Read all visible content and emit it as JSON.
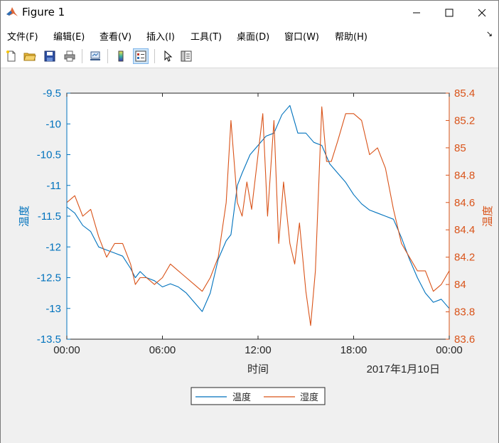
{
  "window": {
    "title": "Figure 1",
    "colors": {
      "titlebar": "#ffffff",
      "figure_bg": "#f0f0f0"
    }
  },
  "menu": {
    "items": [
      "文件(F)",
      "编辑(E)",
      "查看(V)",
      "插入(I)",
      "工具(T)",
      "桌面(D)",
      "窗口(W)",
      "帮助(H)"
    ],
    "overflow_icon": "dock-arrow-icon"
  },
  "toolbar": {
    "buttons": [
      {
        "icon": "new-figure-icon"
      },
      {
        "icon": "open-file-icon"
      },
      {
        "icon": "save-icon"
      },
      {
        "icon": "print-icon"
      },
      {
        "icon": "link-plot-icon"
      },
      {
        "icon": "colorbar-icon"
      },
      {
        "icon": "legend-icon",
        "active": true
      },
      {
        "icon": "pointer-icon"
      },
      {
        "icon": "property-inspector-icon"
      }
    ]
  },
  "chart_data": {
    "type": "line",
    "xlabel": "时间",
    "x_secondary_label": "2017年1月10日",
    "ylabel_left": "温度",
    "ylabel_right": "温度",
    "x_ticks": [
      "00:00",
      "06:00",
      "12:00",
      "18:00",
      "00:00"
    ],
    "xlim_hours": [
      0,
      24
    ],
    "ylim_left": [
      -13.5,
      -9.5
    ],
    "ylim_right": [
      83.6,
      85.4
    ],
    "y_ticks_left": [
      "-9.5",
      "-10",
      "-10.5",
      "-11",
      "-11.5",
      "-12",
      "-12.5",
      "-13",
      "-13.5"
    ],
    "y_ticks_right": [
      "85.4",
      "85.2",
      "85",
      "84.8",
      "84.6",
      "84.4",
      "84.2",
      "84",
      "83.8",
      "83.6"
    ],
    "grid": false,
    "legend_placement": "bottom-outside",
    "series": [
      {
        "name": "温度",
        "axis": "left",
        "color": "#0072bd",
        "x": [
          0,
          0.5,
          1,
          1.5,
          2,
          2.5,
          3,
          3.5,
          4,
          4.3,
          4.6,
          5,
          5.5,
          6,
          6.5,
          7,
          7.5,
          8,
          8.5,
          9,
          9.5,
          10,
          10.3,
          10.7,
          11,
          11.5,
          12,
          12.5,
          13,
          13.5,
          14,
          14.5,
          15,
          15.5,
          16,
          16.5,
          17,
          17.5,
          18,
          18.5,
          19,
          19.5,
          20,
          20.5,
          21,
          21.5,
          22,
          22.5,
          23,
          23.5,
          24
        ],
        "y": [
          -11.35,
          -11.45,
          -11.65,
          -11.75,
          -12.0,
          -12.05,
          -12.1,
          -12.15,
          -12.35,
          -12.5,
          -12.4,
          -12.5,
          -12.55,
          -12.65,
          -12.6,
          -12.65,
          -12.75,
          -12.9,
          -13.05,
          -12.75,
          -12.2,
          -11.9,
          -11.8,
          -11.0,
          -10.8,
          -10.5,
          -10.35,
          -10.2,
          -10.15,
          -9.85,
          -9.7,
          -10.15,
          -10.15,
          -10.3,
          -10.35,
          -10.65,
          -10.8,
          -10.95,
          -11.15,
          -11.3,
          -11.4,
          -11.45,
          -11.5,
          -11.55,
          -11.85,
          -12.2,
          -12.5,
          -12.75,
          -12.9,
          -12.85,
          -13.0
        ]
      },
      {
        "name": "湿度",
        "axis": "right",
        "color": "#d95319",
        "x": [
          0,
          0.5,
          1,
          1.5,
          2,
          2.5,
          3,
          3.5,
          4,
          4.3,
          4.6,
          5,
          5.5,
          6,
          6.5,
          7,
          7.5,
          8,
          8.5,
          9,
          9.5,
          10,
          10.3,
          10.7,
          11,
          11.3,
          11.6,
          12,
          12.3,
          12.6,
          13,
          13.3,
          13.6,
          14,
          14.3,
          14.6,
          15,
          15.3,
          15.6,
          16,
          16.3,
          16.6,
          17,
          17.5,
          18,
          18.5,
          19,
          19.5,
          20,
          20.5,
          21,
          21.5,
          22,
          22.5,
          23,
          23.5,
          24
        ],
        "y": [
          84.6,
          84.65,
          84.5,
          84.55,
          84.35,
          84.2,
          84.3,
          84.3,
          84.15,
          84.0,
          84.05,
          84.05,
          84.0,
          84.05,
          84.15,
          84.1,
          84.05,
          84.0,
          83.95,
          84.05,
          84.2,
          84.6,
          85.2,
          84.6,
          84.5,
          84.75,
          84.55,
          84.95,
          85.25,
          84.5,
          85.2,
          84.3,
          84.75,
          84.3,
          84.15,
          84.45,
          83.95,
          83.7,
          84.1,
          85.3,
          84.9,
          84.9,
          85.05,
          85.25,
          85.25,
          85.2,
          84.95,
          85.0,
          84.85,
          84.55,
          84.3,
          84.2,
          84.1,
          84.1,
          83.95,
          84.0,
          84.1
        ]
      }
    ]
  }
}
